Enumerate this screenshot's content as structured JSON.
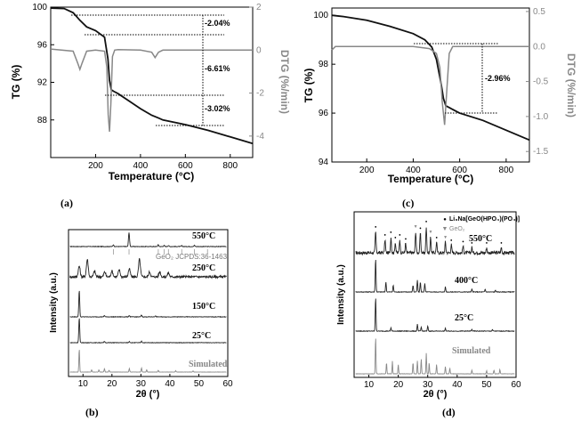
{
  "chart_data": [
    {
      "panel": "(a)",
      "type": "line",
      "xlabel": "Temperature (°C)",
      "ylabel": "TG (%)",
      "y2label": "DTG (%/min)",
      "xlim": [
        0,
        900
      ],
      "ylim": [
        84,
        100
      ],
      "y2lim": [
        -5,
        2
      ],
      "xticks": [
        "200",
        "400",
        "600",
        "800"
      ],
      "yticks": [
        "100",
        "96",
        "92",
        "88"
      ],
      "y2ticks": [
        "2",
        "0",
        "-2",
        "-4"
      ],
      "series": [
        {
          "role": "TG",
          "color": "#111111",
          "x": [
            0,
            60,
            100,
            130,
            160,
            200,
            240,
            255,
            262,
            270,
            280,
            300,
            350,
            400,
            450,
            480,
            500,
            600,
            700,
            800,
            900
          ],
          "y": [
            99.9,
            99.85,
            99.4,
            98.6,
            97.9,
            97.5,
            96.8,
            94.5,
            92.2,
            91.2,
            91.05,
            90.8,
            90.0,
            89.2,
            88.5,
            88.2,
            88.0,
            87.5,
            86.9,
            86.2,
            85.5
          ]
        },
        {
          "role": "DTG",
          "color": "#888888",
          "x": [
            0,
            100,
            120,
            130,
            140,
            160,
            200,
            240,
            250,
            256,
            262,
            268,
            275,
            285,
            300,
            400,
            450,
            465,
            480,
            500,
            600,
            900
          ],
          "y": [
            0.05,
            -0.05,
            -0.6,
            -0.9,
            -0.6,
            -0.05,
            0.0,
            -0.05,
            -0.8,
            -3.0,
            -3.8,
            -2.5,
            -0.3,
            0.0,
            0.02,
            0.0,
            -0.1,
            -0.35,
            -0.1,
            0.0,
            0.0,
            0.0
          ]
        }
      ],
      "annotations": [
        "-2.04%",
        "-6.61%",
        "-3.02%"
      ]
    },
    {
      "panel": "(c)",
      "type": "line",
      "xlabel": "Temperature (°C)",
      "ylabel": "TG (%)",
      "y2label": "DTG (%/min)",
      "xlim": [
        50,
        900
      ],
      "ylim": [
        94,
        100.3
      ],
      "y2lim": [
        -1.65,
        0.55
      ],
      "xticks": [
        "200",
        "400",
        "600",
        "800"
      ],
      "yticks": [
        "100",
        "98",
        "96",
        "94"
      ],
      "y2ticks": [
        "0.5",
        "0.0",
        "-0.5",
        "-1.0",
        "-1.5"
      ],
      "series": [
        {
          "role": "TG",
          "color": "#111111",
          "x": [
            50,
            100,
            200,
            300,
            400,
            450,
            480,
            500,
            520,
            530,
            540,
            560,
            600,
            700,
            800,
            900
          ],
          "y": [
            100.0,
            99.95,
            99.8,
            99.55,
            99.25,
            99.0,
            98.7,
            98.2,
            97.2,
            96.6,
            96.3,
            96.2,
            96.0,
            95.7,
            95.3,
            94.9
          ]
        },
        {
          "role": "DTG",
          "color": "#888888",
          "x": [
            50,
            65,
            80,
            200,
            400,
            470,
            500,
            515,
            525,
            535,
            545,
            555,
            570,
            600,
            900
          ],
          "y": [
            -0.05,
            0.0,
            0.0,
            0.0,
            0.0,
            -0.03,
            -0.1,
            -0.3,
            -0.8,
            -1.12,
            -0.6,
            -0.1,
            0.0,
            0.0,
            0.0
          ]
        }
      ],
      "annotations": [
        "-2.96%"
      ]
    },
    {
      "panel": "(b)",
      "type": "line",
      "xlabel": "2θ (°)",
      "ylabel": "Intensity (a.u.)",
      "xlim": [
        5,
        60
      ],
      "xticks": [
        "10",
        "20",
        "30",
        "40",
        "50",
        "60"
      ],
      "series": [
        {
          "name": "550°C",
          "peaks": [
            [
              20.5,
              0.12
            ],
            [
              25.9,
              1.0
            ],
            [
              36.0,
              0.12
            ],
            [
              38.0,
              0.08
            ],
            [
              39.5,
              0.07
            ],
            [
              44.1,
              0.06
            ],
            [
              48.5,
              0.08
            ]
          ]
        },
        {
          "name": "250°C",
          "peaks": [
            [
              8.7,
              0.55
            ],
            [
              11.5,
              0.9
            ],
            [
              14.0,
              0.3
            ],
            [
              17.5,
              0.25
            ],
            [
              20.0,
              0.3
            ],
            [
              22.5,
              0.35
            ],
            [
              26.0,
              0.4
            ],
            [
              29.5,
              0.9
            ],
            [
              33.0,
              0.25
            ],
            [
              36.5,
              0.25
            ],
            [
              39.5,
              0.2
            ]
          ]
        },
        {
          "name": "150°C",
          "peaks": [
            [
              8.7,
              1.0
            ],
            [
              17.4,
              0.05
            ],
            [
              26.0,
              0.05
            ],
            [
              30.2,
              0.07
            ],
            [
              35.0,
              0.04
            ]
          ]
        },
        {
          "name": "25°C",
          "peaks": [
            [
              8.7,
              1.0
            ],
            [
              17.4,
              0.05
            ],
            [
              26.0,
              0.05
            ],
            [
              30.2,
              0.06
            ]
          ]
        },
        {
          "name": "Simulated",
          "peaks": [
            [
              8.7,
              1.0
            ],
            [
              13.0,
              0.1
            ],
            [
              15.5,
              0.1
            ],
            [
              17.4,
              0.15
            ],
            [
              19.0,
              0.08
            ],
            [
              26.0,
              0.15
            ],
            [
              30.2,
              0.18
            ],
            [
              32.0,
              0.1
            ],
            [
              36.0,
              0.08
            ],
            [
              42.0,
              0.06
            ],
            [
              48.0,
              0.05
            ]
          ]
        }
      ],
      "reference": "GeO₂ JCPDS:36-1463",
      "reference_ticks": [
        20.5,
        25.9,
        36.0,
        38.0,
        39.5,
        44.1,
        48.5,
        53.0
      ]
    },
    {
      "panel": "(d)",
      "type": "line",
      "xlabel": "2θ (°)",
      "ylabel": "Intensity (a.u.)",
      "xlim": [
        5,
        60
      ],
      "xticks": [
        "10",
        "20",
        "30",
        "40",
        "50",
        "60"
      ],
      "legend": [
        "Li₃Na[GeO(HPO₄)(PO₄)]",
        "GeO₂"
      ],
      "series": [
        {
          "name": "550°C",
          "peaks": [
            [
              12.3,
              0.8
            ],
            [
              15.5,
              0.5
            ],
            [
              17.5,
              0.6
            ],
            [
              19.0,
              0.4
            ],
            [
              20.5,
              0.5
            ],
            [
              22.5,
              0.35
            ],
            [
              25.9,
              0.8
            ],
            [
              27.5,
              0.75
            ],
            [
              29.5,
              1.0
            ],
            [
              31.0,
              0.6
            ],
            [
              33.0,
              0.4
            ],
            [
              36.0,
              0.4
            ],
            [
              38.0,
              0.3
            ],
            [
              42.0,
              0.25
            ],
            [
              45.0,
              0.2
            ],
            [
              50.0,
              0.2
            ],
            [
              55.0,
              0.2
            ]
          ]
        },
        {
          "name": "400°C",
          "peaks": [
            [
              12.3,
              1.0
            ],
            [
              15.8,
              0.3
            ],
            [
              18.3,
              0.2
            ],
            [
              25.0,
              0.2
            ],
            [
              26.5,
              0.35
            ],
            [
              27.5,
              0.3
            ],
            [
              29.0,
              0.25
            ],
            [
              36.0,
              0.15
            ],
            [
              45.0,
              0.08
            ],
            [
              49.5,
              0.08
            ],
            [
              53.0,
              0.05
            ]
          ]
        },
        {
          "name": "25°C",
          "peaks": [
            [
              12.3,
              1.0
            ],
            [
              17.5,
              0.1
            ],
            [
              26.5,
              0.2
            ],
            [
              27.8,
              0.12
            ],
            [
              30.0,
              0.15
            ],
            [
              36.0,
              0.08
            ],
            [
              45.0,
              0.05
            ],
            [
              52.0,
              0.04
            ]
          ]
        },
        {
          "name": "Simulated",
          "peaks": [
            [
              12.3,
              1.0
            ],
            [
              16.0,
              0.3
            ],
            [
              18.0,
              0.35
            ],
            [
              20.0,
              0.25
            ],
            [
              25.0,
              0.3
            ],
            [
              26.5,
              0.35
            ],
            [
              27.8,
              0.4
            ],
            [
              29.5,
              0.55
            ],
            [
              30.5,
              0.3
            ],
            [
              33.0,
              0.25
            ],
            [
              36.0,
              0.2
            ],
            [
              37.5,
              0.15
            ],
            [
              45.0,
              0.1
            ],
            [
              50.0,
              0.08
            ],
            [
              52.5,
              0.1
            ],
            [
              54.5,
              0.12
            ]
          ]
        }
      ]
    }
  ]
}
